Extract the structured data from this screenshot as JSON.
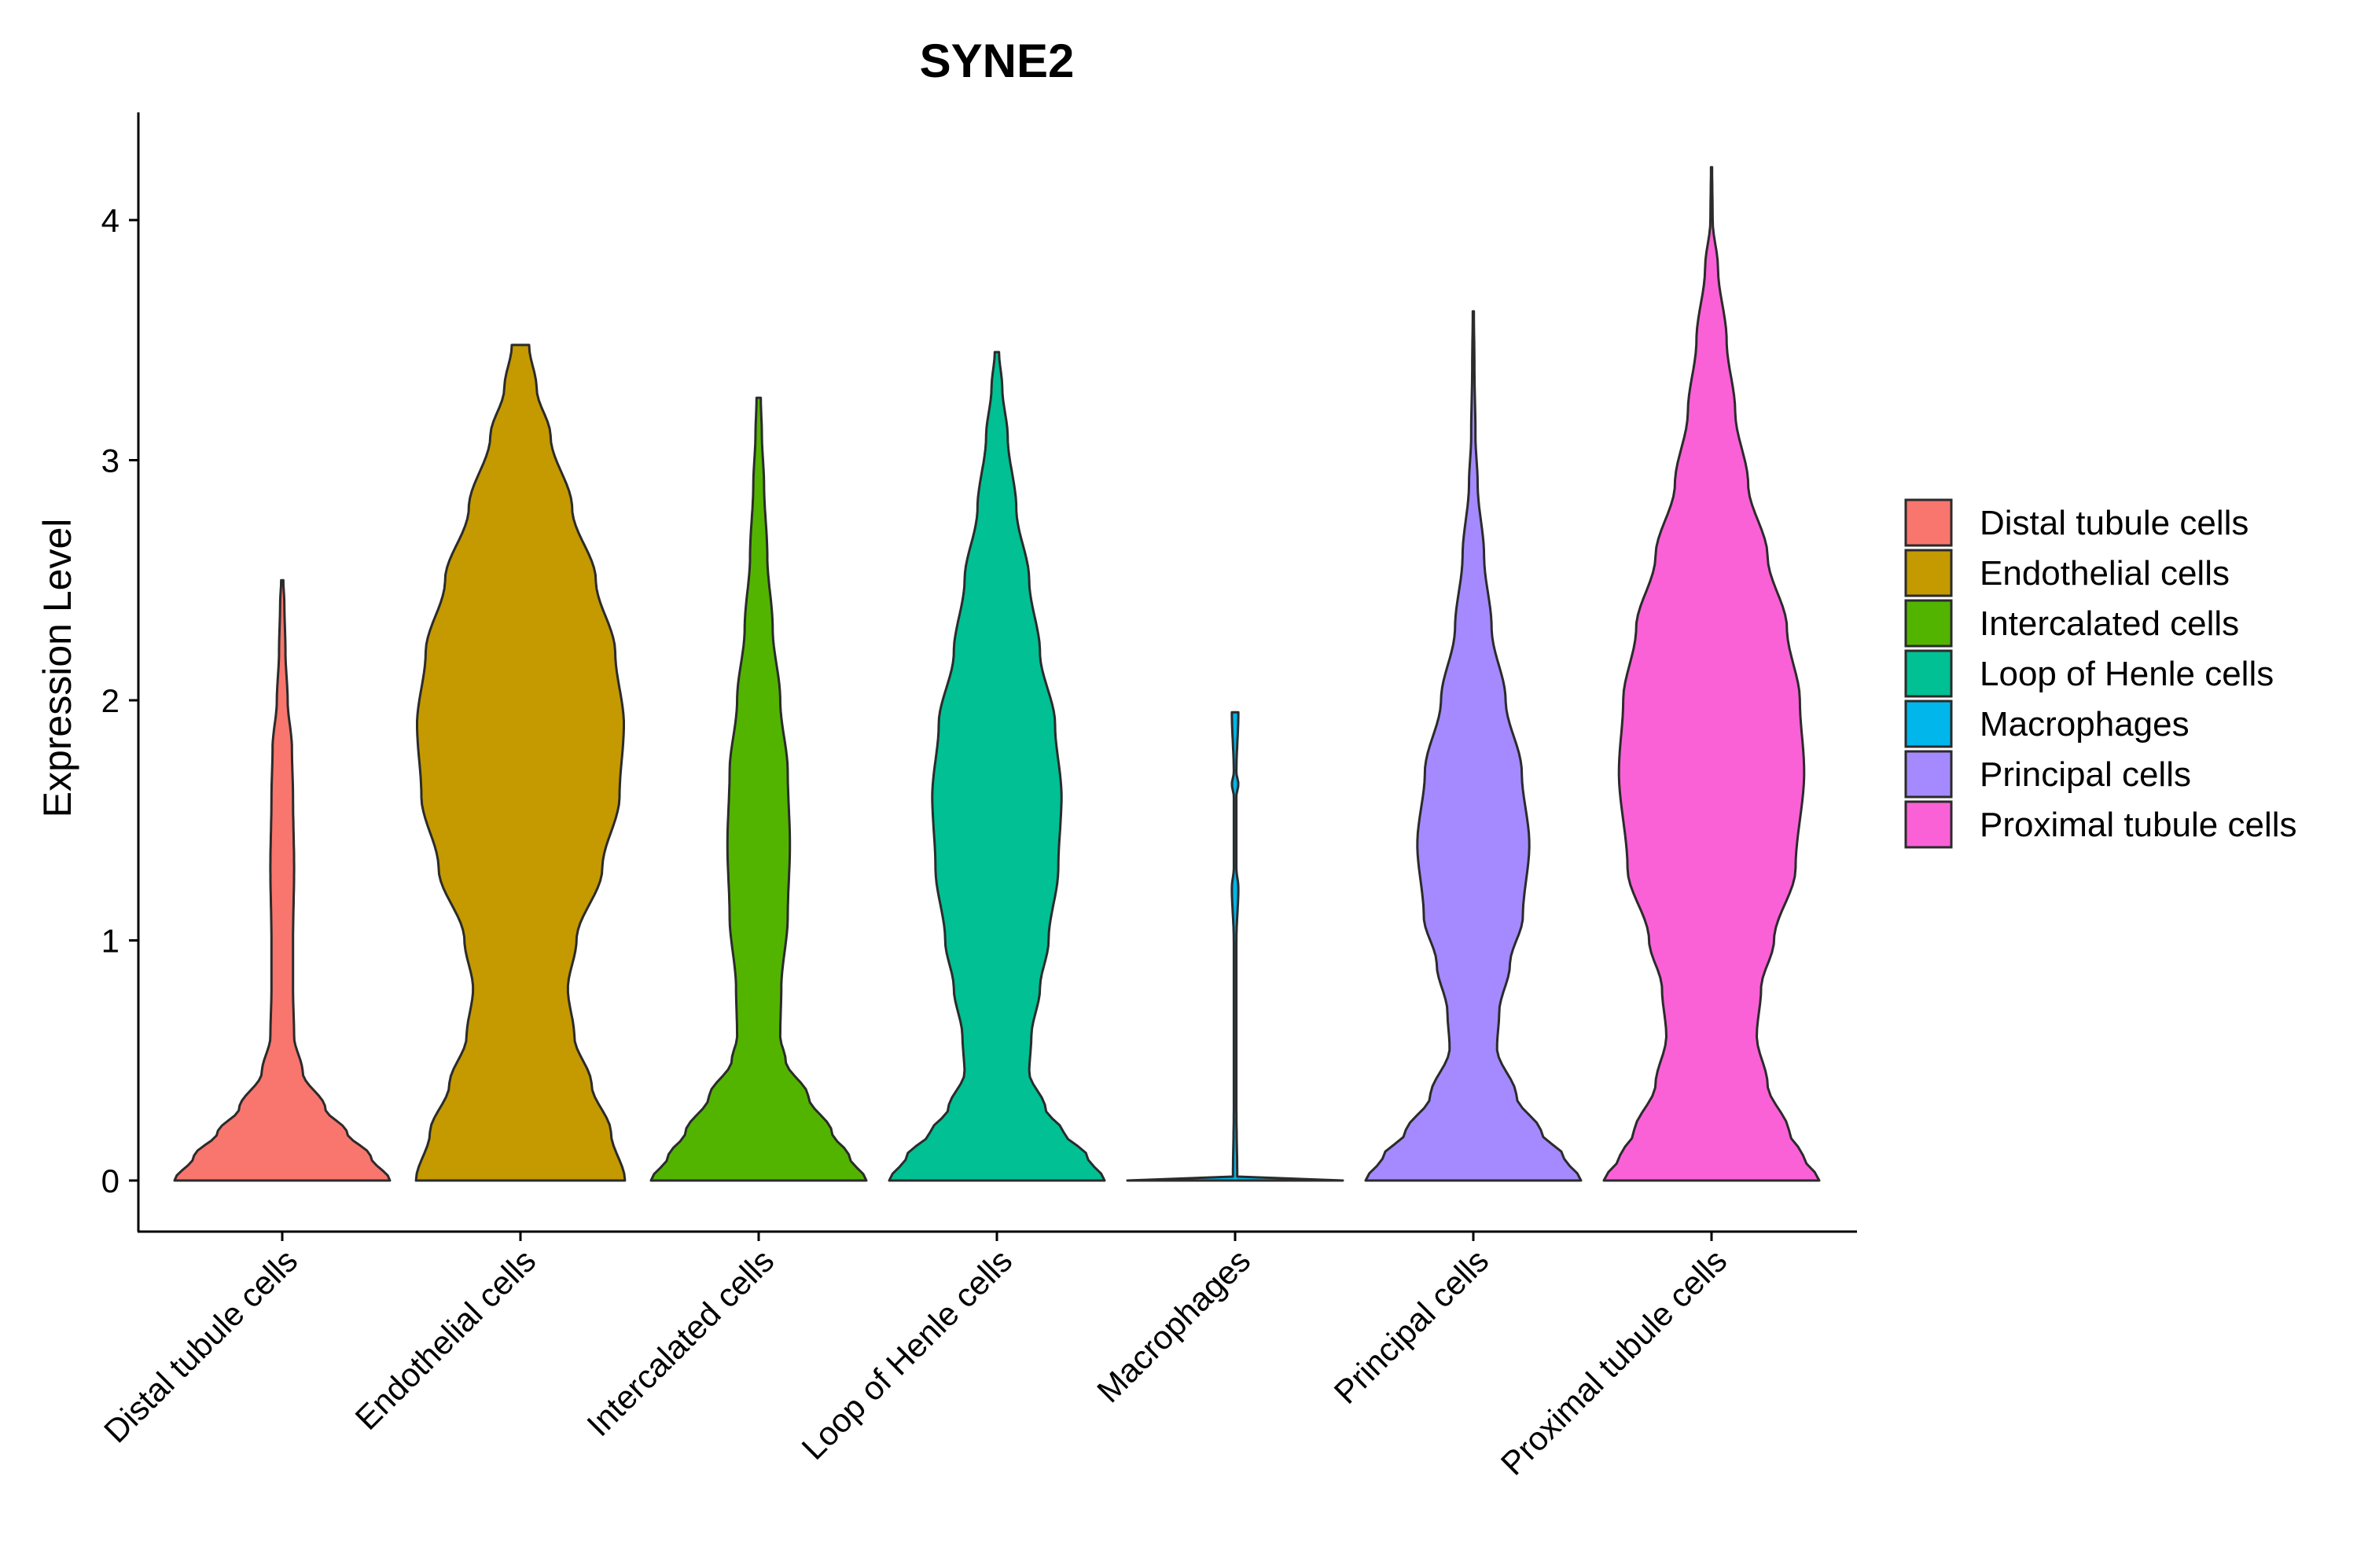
{
  "chart_data": {
    "type": "violin",
    "title": "SYNE2",
    "xlabel": "",
    "ylabel": "Expression Level",
    "ylim": [
      -0.2,
      4.45
    ],
    "yticks": [
      0,
      1,
      2,
      3,
      4
    ],
    "yticklabels": [
      "0",
      "1",
      "2",
      "3",
      "4"
    ],
    "categories": [
      "Distal tubule cells",
      "Endothelial cells",
      "Intercalated cells",
      "Loop of Henle cells",
      "Macrophages",
      "Principal cells",
      "Proximal tubule cells"
    ],
    "colors": [
      "#F8766D",
      "#C49A00",
      "#53B400",
      "#00C094",
      "#00B6EB",
      "#A58AFF",
      "#FB61D7"
    ],
    "legend_position": "right",
    "legend_title": "",
    "series": [
      {
        "name": "Distal tubule cells",
        "max": 2.5,
        "profile": [
          [
            0,
            1.0
          ],
          [
            0.1,
            0.82
          ],
          [
            0.2,
            0.6
          ],
          [
            0.3,
            0.4
          ],
          [
            0.45,
            0.19
          ],
          [
            0.6,
            0.11
          ],
          [
            0.8,
            0.1
          ],
          [
            1.0,
            0.1
          ],
          [
            1.3,
            0.11
          ],
          [
            1.6,
            0.1
          ],
          [
            1.8,
            0.09
          ],
          [
            2.0,
            0.05
          ],
          [
            2.2,
            0.03
          ],
          [
            2.4,
            0.02
          ],
          [
            2.5,
            0.01
          ]
        ]
      },
      {
        "name": "Endothelial cells",
        "max": 3.48,
        "profile": [
          [
            0,
            0.97
          ],
          [
            0.2,
            0.84
          ],
          [
            0.4,
            0.66
          ],
          [
            0.6,
            0.5
          ],
          [
            0.8,
            0.44
          ],
          [
            1.0,
            0.52
          ],
          [
            1.3,
            0.76
          ],
          [
            1.6,
            0.92
          ],
          [
            1.9,
            0.96
          ],
          [
            2.2,
            0.88
          ],
          [
            2.5,
            0.7
          ],
          [
            2.8,
            0.48
          ],
          [
            3.1,
            0.28
          ],
          [
            3.3,
            0.15
          ],
          [
            3.48,
            0.08
          ]
        ]
      },
      {
        "name": "Intercalated cells",
        "max": 3.26,
        "profile": [
          [
            0,
            1.0
          ],
          [
            0.1,
            0.84
          ],
          [
            0.2,
            0.68
          ],
          [
            0.35,
            0.46
          ],
          [
            0.5,
            0.25
          ],
          [
            0.6,
            0.2
          ],
          [
            0.8,
            0.21
          ],
          [
            1.1,
            0.27
          ],
          [
            1.4,
            0.29
          ],
          [
            1.7,
            0.27
          ],
          [
            2.0,
            0.2
          ],
          [
            2.3,
            0.13
          ],
          [
            2.6,
            0.08
          ],
          [
            2.9,
            0.05
          ],
          [
            3.1,
            0.03
          ],
          [
            3.26,
            0.02
          ]
        ]
      },
      {
        "name": "Loop of Henle cells",
        "max": 3.45,
        "profile": [
          [
            0,
            1.0
          ],
          [
            0.1,
            0.84
          ],
          [
            0.2,
            0.62
          ],
          [
            0.3,
            0.45
          ],
          [
            0.45,
            0.3
          ],
          [
            0.6,
            0.32
          ],
          [
            0.8,
            0.4
          ],
          [
            1.0,
            0.48
          ],
          [
            1.3,
            0.57
          ],
          [
            1.6,
            0.6
          ],
          [
            1.9,
            0.54
          ],
          [
            2.2,
            0.4
          ],
          [
            2.5,
            0.3
          ],
          [
            2.8,
            0.18
          ],
          [
            3.1,
            0.1
          ],
          [
            3.3,
            0.05
          ],
          [
            3.45,
            0.02
          ]
        ]
      },
      {
        "name": "Macrophages",
        "max": 1.95,
        "profile": [
          [
            0,
            1.0
          ],
          [
            0.005,
            0.02
          ],
          [
            0.3,
            0.012
          ],
          [
            0.6,
            0.012
          ],
          [
            1.0,
            0.012
          ],
          [
            1.22,
            0.03
          ],
          [
            1.3,
            0.012
          ],
          [
            1.6,
            0.012
          ],
          [
            1.65,
            0.03
          ],
          [
            1.7,
            0.012
          ],
          [
            1.95,
            0.03
          ]
        ]
      },
      {
        "name": "Principal cells",
        "max": 3.62,
        "profile": [
          [
            0,
            1.0
          ],
          [
            0.1,
            0.84
          ],
          [
            0.2,
            0.63
          ],
          [
            0.35,
            0.4
          ],
          [
            0.55,
            0.22
          ],
          [
            0.7,
            0.24
          ],
          [
            0.9,
            0.34
          ],
          [
            1.1,
            0.46
          ],
          [
            1.4,
            0.52
          ],
          [
            1.7,
            0.45
          ],
          [
            2.0,
            0.3
          ],
          [
            2.3,
            0.17
          ],
          [
            2.6,
            0.1
          ],
          [
            2.9,
            0.04
          ],
          [
            3.1,
            0.02
          ],
          [
            3.4,
            0.01
          ],
          [
            3.62,
            0.005
          ]
        ]
      },
      {
        "name": "Proximal tubule cells",
        "max": 4.22,
        "profile": [
          [
            0,
            1.0
          ],
          [
            0.1,
            0.85
          ],
          [
            0.2,
            0.72
          ],
          [
            0.4,
            0.52
          ],
          [
            0.6,
            0.42
          ],
          [
            0.8,
            0.46
          ],
          [
            1.0,
            0.58
          ],
          [
            1.3,
            0.78
          ],
          [
            1.7,
            0.86
          ],
          [
            2.0,
            0.82
          ],
          [
            2.3,
            0.7
          ],
          [
            2.6,
            0.52
          ],
          [
            2.9,
            0.34
          ],
          [
            3.2,
            0.22
          ],
          [
            3.5,
            0.14
          ],
          [
            3.8,
            0.06
          ],
          [
            4.0,
            0.01
          ],
          [
            4.22,
            0.005
          ]
        ]
      }
    ]
  }
}
